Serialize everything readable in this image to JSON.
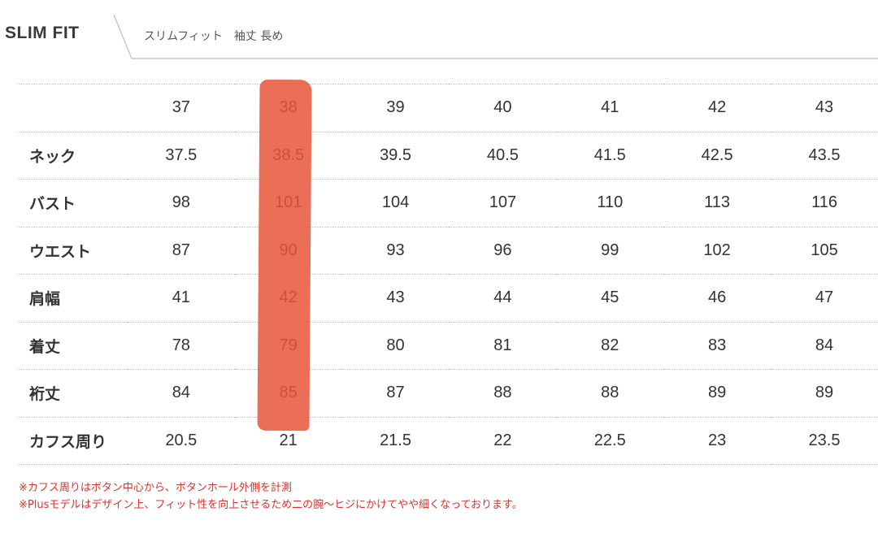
{
  "header": {
    "title": "SLIM FIT",
    "subtitle": "スリムフィット　袖丈 長め"
  },
  "table": {
    "sizes": [
      "37",
      "38",
      "39",
      "40",
      "41",
      "42",
      "43"
    ],
    "rows": [
      {
        "label": "ネック",
        "values": [
          "37.5",
          "38.5",
          "39.5",
          "40.5",
          "41.5",
          "42.5",
          "43.5"
        ]
      },
      {
        "label": "バスト",
        "values": [
          "98",
          "101",
          "104",
          "107",
          "110",
          "113",
          "116"
        ]
      },
      {
        "label": "ウエスト",
        "values": [
          "87",
          "90",
          "93",
          "96",
          "99",
          "102",
          "105"
        ]
      },
      {
        "label": "肩幅",
        "values": [
          "41",
          "42",
          "43",
          "44",
          "45",
          "46",
          "47"
        ]
      },
      {
        "label": "着丈",
        "values": [
          "78",
          "79",
          "80",
          "81",
          "82",
          "83",
          "84"
        ]
      },
      {
        "label": "裄丈",
        "values": [
          "84",
          "85",
          "87",
          "88",
          "88",
          "89",
          "89"
        ]
      },
      {
        "label": "カフス周り",
        "values": [
          "20.5",
          "21",
          "21.5",
          "22",
          "22.5",
          "23",
          "23.5"
        ]
      }
    ]
  },
  "notes": [
    "※カフス周りはボタン中心から、ボタンホール外側を計測",
    "※Plusモデルはデザイン上、フィット性を向上させるため二の腕〜ヒジにかけてやや細くなっております。"
  ],
  "colors": {
    "highlight": "#e8553a",
    "notes": "#e0302a"
  }
}
